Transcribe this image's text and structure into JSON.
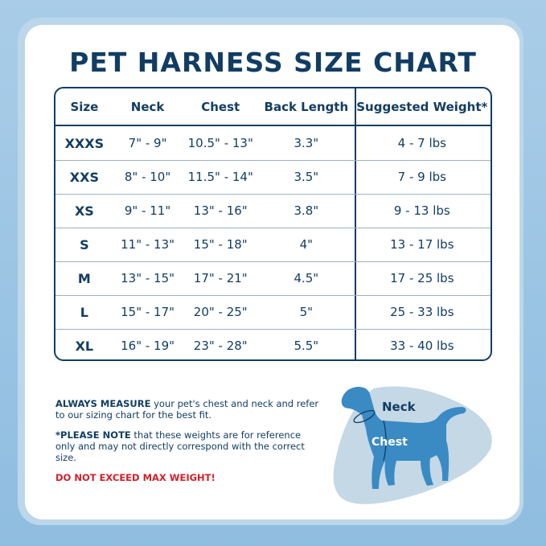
{
  "title": "PET HARNESS SIZE CHART",
  "table": {
    "headers": [
      "Size",
      "Neck",
      "Chest",
      "Back Length",
      "Suggested Weight*"
    ],
    "rows": [
      [
        "XXXS",
        "7\" - 9\"",
        "10.5\" - 13\"",
        "3.3\"",
        "4 - 7 lbs"
      ],
      [
        "XXS",
        "8\" - 10\"",
        "11.5\" - 14\"",
        "3.5\"",
        "7 - 9 lbs"
      ],
      [
        "XS",
        "9\" - 11\"",
        "13\" - 16\"",
        "3.8\"",
        "9 - 13 lbs"
      ],
      [
        "S",
        "11\" - 13\"",
        "15\" - 18\"",
        "4\"",
        "13 - 17 lbs"
      ],
      [
        "M",
        "13\" - 15\"",
        "17\" - 21\"",
        "4.5\"",
        "17 - 25 lbs"
      ],
      [
        "L",
        "15\" - 17\"",
        "20\" - 25\"",
        "5\"",
        "25 - 33 lbs"
      ],
      [
        "XL",
        "16\" - 19\"",
        "23\" - 28\"",
        "5.5\"",
        "33 - 40 lbs"
      ]
    ]
  },
  "notes": {
    "measure_bold": "ALWAYS MEASURE",
    "measure_text": " your pet's chest and neck and refer to our sizing chart for the best fit.",
    "please_bold": "*PLEASE NOTE",
    "please_text": " that these weights are for reference only and may not directly correspond with the correct size.",
    "warning": "DO NOT EXCEED MAX WEIGHT!"
  },
  "diagram": {
    "neck_label": "Neck",
    "chest_label": "Chest"
  },
  "colors": {
    "navy": "#123d63",
    "dog_blue": "#3a8ac4",
    "warning_red": "#d0202a"
  }
}
